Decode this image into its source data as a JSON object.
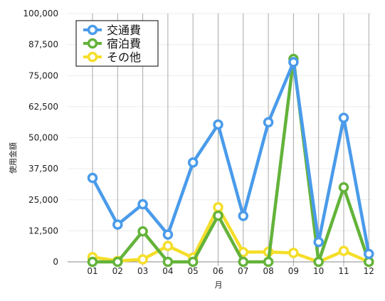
{
  "chart_data": {
    "type": "line",
    "xlabel": "月",
    "ylabel": "使用金額",
    "categories": [
      "01",
      "02",
      "03",
      "04",
      "05",
      "06",
      "07",
      "08",
      "09",
      "10",
      "11",
      "12"
    ],
    "ylim": [
      0,
      100000
    ],
    "yticks": [
      0,
      12500,
      25000,
      37500,
      50000,
      62500,
      75000,
      87500,
      100000
    ],
    "ytick_labels": [
      "0",
      "12,500",
      "25,000",
      "37,500",
      "50,000",
      "62,500",
      "75,000",
      "87,500",
      "100,000"
    ],
    "grid": "vertical lines at categories",
    "legend_position": "top-left",
    "series": [
      {
        "name": "交通費",
        "color": "#4A9BEA",
        "values": [
          33800,
          15000,
          23200,
          11000,
          40000,
          55300,
          18500,
          56200,
          80400,
          8000,
          58000,
          3200
        ]
      },
      {
        "name": "宿泊費",
        "color": "#63B33A",
        "values": [
          0,
          0,
          12300,
          0,
          0,
          18600,
          0,
          0,
          81700,
          0,
          30000,
          0
        ]
      },
      {
        "name": "その他",
        "color": "#F5DE2A",
        "values": [
          1900,
          400,
          1000,
          6400,
          1700,
          22000,
          3900,
          4000,
          3600,
          0,
          4400,
          0
        ]
      }
    ]
  }
}
